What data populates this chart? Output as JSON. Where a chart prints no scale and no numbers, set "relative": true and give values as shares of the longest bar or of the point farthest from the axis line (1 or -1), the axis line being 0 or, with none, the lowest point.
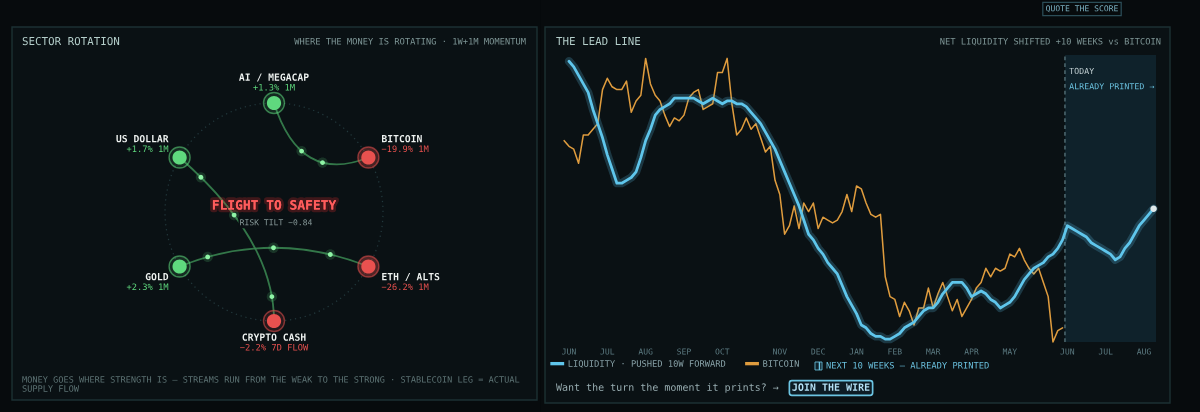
{
  "chart_data": [
    {
      "type": "other",
      "title": "SECTOR ROTATION",
      "subtitle": "WHERE THE MONEY IS ROTATING · 1W+1M MOMENTUM",
      "categories": [
        "AI / MEGACAP",
        "BITCOIN",
        "ETH / ALTS",
        "CRYPTO CASH",
        "GOLD",
        "US DOLLAR"
      ],
      "values": [
        1.3,
        -19.9,
        -26.2,
        -2.2,
        2.3,
        1.7
      ],
      "value_labels": [
        "+1.3% 1M",
        "−19.9% 1M",
        "−26.2% 1M",
        "−2.2% 7D FLOW",
        "+2.3% 1M",
        "+1.7% 1M"
      ],
      "annotations": [
        "FLIGHT TO SAFETY",
        "RISK TILT −0.84",
        "MONEY GOES WHERE STRENGTH IS — STREAMS RUN FROM THE WEAK TO THE STRONG · STABLECOIN LEG = ACTUAL SUPPLY FLOW"
      ]
    },
    {
      "type": "line",
      "title": "THE LEAD LINE",
      "subtitle": "NET LIQUIDITY SHIFTED +10 WEEKS vs BITCOIN",
      "relative": true,
      "categories": [
        null,
        null,
        "JUN",
        null,
        null,
        null,
        null,
        null,
        null,
        null,
        "JUL",
        null,
        null,
        null,
        null,
        null,
        null,
        null,
        "AUG",
        null,
        null,
        null,
        null,
        null,
        null,
        null,
        "SEP",
        null,
        null,
        null,
        null,
        null,
        null,
        null,
        "OCT",
        null,
        null,
        null,
        null,
        null,
        null,
        null,
        null,
        null,
        null,
        null,
        "NOV",
        null,
        null,
        null,
        null,
        null,
        null,
        null,
        "DEC",
        null,
        null,
        null,
        null,
        null,
        null,
        null,
        "JAN",
        null,
        null,
        null,
        null,
        null,
        null,
        null,
        "FEB",
        null,
        null,
        null,
        null,
        null,
        null,
        null,
        "MAR",
        null,
        null,
        null,
        null,
        null,
        null,
        null,
        "APR",
        null,
        null,
        null,
        null,
        null,
        null,
        null,
        "MAY",
        null,
        null,
        null,
        null,
        null,
        null,
        null,
        null,
        null,
        null,
        null,
        "JUN",
        null,
        null,
        null,
        null,
        null,
        null,
        null,
        "JUL",
        null,
        null,
        null,
        null,
        null,
        null,
        null,
        "AUG",
        null,
        null
      ],
      "series": [
        {
          "name": "LIQUIDITY · PUSHED 10W FORWARD",
          "color": "#5fc6ec",
          "values": [
            null,
            null,
            0.99,
            0.97,
            0.94,
            0.91,
            0.88,
            0.82,
            0.77,
            0.72,
            0.66,
            0.61,
            0.56,
            0.56,
            0.57,
            0.58,
            0.6,
            0.65,
            0.71,
            0.75,
            0.8,
            0.82,
            0.83,
            0.84,
            0.86,
            0.86,
            0.86,
            0.86,
            0.86,
            0.85,
            0.84,
            0.85,
            0.86,
            0.85,
            0.84,
            0.85,
            0.85,
            0.84,
            0.84,
            0.83,
            0.81,
            0.79,
            0.77,
            0.74,
            0.71,
            0.68,
            0.64,
            0.6,
            0.56,
            0.52,
            0.48,
            0.43,
            0.38,
            0.36,
            0.33,
            0.31,
            0.28,
            0.26,
            0.24,
            0.2,
            0.16,
            0.13,
            0.1,
            0.06,
            0.05,
            0.03,
            0.02,
            0.02,
            0.01,
            0.01,
            0.02,
            0.03,
            0.05,
            0.06,
            0.07,
            0.09,
            0.11,
            0.12,
            0.12,
            0.14,
            0.17,
            0.19,
            0.21,
            0.21,
            0.21,
            0.19,
            0.16,
            0.17,
            0.18,
            0.17,
            0.15,
            0.14,
            0.12,
            0.13,
            0.14,
            0.16,
            0.19,
            0.22,
            0.24,
            0.26,
            0.27,
            0.28,
            0.3,
            0.31,
            0.33,
            0.36,
            0.41,
            0.4,
            0.39,
            0.38,
            0.37,
            0.35,
            0.34,
            0.33,
            0.32,
            0.31,
            0.29,
            0.3,
            0.33,
            0.35,
            0.38,
            0.41,
            0.43,
            0.45,
            0.47
          ]
        },
        {
          "name": "BITCOIN",
          "color": "#df9c3e",
          "values": [
            null,
            0.71,
            0.69,
            0.68,
            0.63,
            0.73,
            0.73,
            0.75,
            0.77,
            0.89,
            0.93,
            0.9,
            0.89,
            0.89,
            0.92,
            0.81,
            0.85,
            0.87,
            1,
            0.91,
            0.87,
            0.85,
            0.8,
            0.76,
            0.79,
            0.78,
            0.8,
            0.86,
            0.88,
            0.89,
            0.82,
            0.83,
            0.84,
            0.95,
            0.95,
            1,
            0.84,
            0.73,
            0.75,
            0.79,
            0.75,
            0.77,
            0.72,
            0.67,
            0.69,
            0.57,
            0.52,
            0.38,
            0.41,
            0.48,
            0.4,
            0.49,
            0.46,
            0.49,
            0.4,
            0.44,
            0.43,
            0.42,
            0.43,
            0.46,
            0.52,
            0.46,
            0.55,
            0.54,
            0.49,
            0.45,
            0.44,
            0.45,
            0.23,
            0.16,
            0.15,
            0.09,
            0.14,
            0.11,
            0.06,
            0.12,
            0.12,
            0.19,
            0.12,
            0.17,
            0.21,
            0.16,
            0.11,
            0.15,
            0.09,
            0.12,
            0.15,
            0.19,
            0.21,
            0.26,
            0.23,
            0.26,
            0.25,
            0.26,
            0.31,
            0.3,
            0.33,
            0.29,
            0.26,
            0.24,
            0.26,
            0.21,
            0.16,
            0,
            0.04,
            0.05,
            null,
            null,
            null,
            null,
            null,
            null,
            null,
            null,
            null,
            null,
            null,
            null,
            null,
            null,
            null,
            null,
            null,
            null,
            null
          ]
        },
        {
          "type": "scatter",
          "color": "#dfe8ea",
          "values": [
            null,
            null,
            null,
            null,
            null,
            null,
            null,
            null,
            null,
            null,
            null,
            null,
            null,
            null,
            null,
            null,
            null,
            null,
            null,
            null,
            null,
            null,
            null,
            null,
            null,
            null,
            null,
            null,
            null,
            null,
            null,
            null,
            null,
            null,
            null,
            null,
            null,
            null,
            null,
            null,
            null,
            null,
            null,
            null,
            null,
            null,
            null,
            null,
            null,
            null,
            null,
            null,
            null,
            null,
            null,
            null,
            null,
            null,
            null,
            null,
            null,
            null,
            null,
            null,
            null,
            null,
            null,
            null,
            null,
            null,
            null,
            null,
            null,
            null,
            null,
            null,
            null,
            null,
            null,
            null,
            null,
            null,
            null,
            null,
            null,
            null,
            null,
            null,
            null,
            null,
            null,
            null,
            null,
            null,
            null,
            null,
            null,
            null,
            null,
            null,
            null,
            null,
            null,
            null,
            null,
            null,
            null,
            null,
            null,
            null,
            null,
            null,
            null,
            null,
            null,
            null,
            null,
            null,
            null,
            null,
            null,
            null,
            null,
            null,
            0.47
          ]
        }
      ],
      "annotations": [
        "TODAY",
        "ALREADY PRINTED →",
        "NEXT 10 WEEKS — ALREADY PRINTED",
        "Want the turn the moment it prints? →",
        "JOIN THE WIRE",
        "QUOTE THE SCORE"
      ],
      "legend": "bottom"
    }
  ]
}
